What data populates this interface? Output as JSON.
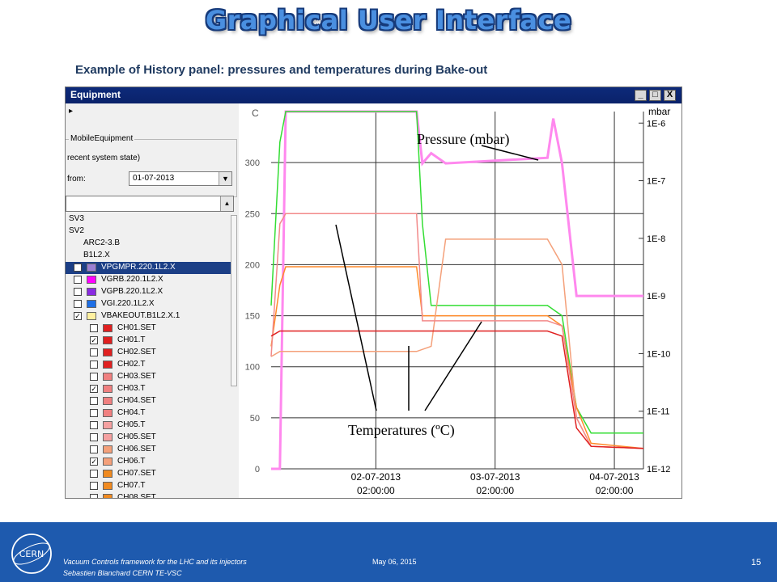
{
  "slide": {
    "title": "Graphical User Interface",
    "subtitle": "Example of History panel: pressures and temperatures during Bake-out"
  },
  "window": {
    "title": "Equipment",
    "buttons": [
      "_",
      "□",
      "X"
    ]
  },
  "panel": {
    "arrow": "▸",
    "group_label": "MobileEquipment",
    "recent_label": "recent system state)",
    "from_label": "from:",
    "from_value": "01-07-2013",
    "tree_items": [
      {
        "label": "SV3",
        "indent": 0
      },
      {
        "label": "SV2",
        "indent": 0
      },
      {
        "label": "ARC2-3.B",
        "indent": 1
      },
      {
        "label": "B1L2.X",
        "indent": 1
      },
      {
        "label": "VPGMPR.220.1L2.X",
        "checked": true,
        "color": "#9b7fd4",
        "selected": true
      },
      {
        "label": "VGRB.220.1L2.X",
        "checked": false,
        "color": "#ff00ff"
      },
      {
        "label": "VGPB.220.1L2.X",
        "checked": false,
        "color": "#8a2be2"
      },
      {
        "label": "VGI.220.1L2.X",
        "checked": false,
        "color": "#1e6fe6"
      },
      {
        "label": "VBAKEOUT.B1L2.X.1",
        "checked": true,
        "color": "#fff0a0"
      },
      {
        "label": "CH01.SET",
        "checked": false,
        "color": "#e02020",
        "sub": true
      },
      {
        "label": "CH01.T",
        "checked": true,
        "color": "#e02020",
        "sub": true
      },
      {
        "label": "CH02.SET",
        "checked": false,
        "color": "#e02020",
        "sub": true
      },
      {
        "label": "CH02.T",
        "checked": false,
        "color": "#e02020",
        "sub": true
      },
      {
        "label": "CH03.SET",
        "checked": false,
        "color": "#f08080",
        "sub": true
      },
      {
        "label": "CH03.T",
        "checked": true,
        "color": "#f08080",
        "sub": true
      },
      {
        "label": "CH04.SET",
        "checked": false,
        "color": "#f08080",
        "sub": true
      },
      {
        "label": "CH04.T",
        "checked": false,
        "color": "#f08080",
        "sub": true
      },
      {
        "label": "CH05.T",
        "checked": false,
        "color": "#f4a0a0",
        "sub": true
      },
      {
        "label": "CH05.SET",
        "checked": false,
        "color": "#f4a0a0",
        "sub": true
      },
      {
        "label": "CH06.SET",
        "checked": false,
        "color": "#f4a07a",
        "sub": true
      },
      {
        "label": "CH06.T",
        "checked": true,
        "color": "#f4a07a",
        "sub": true
      },
      {
        "label": "CH07.SET",
        "checked": false,
        "color": "#f08a20",
        "sub": true
      },
      {
        "label": "CH07.T",
        "checked": false,
        "color": "#f08a20",
        "sub": true
      },
      {
        "label": "CH08.SET",
        "checked": false,
        "color": "#f08a20",
        "sub": true
      }
    ]
  },
  "chart_data": {
    "type": "line",
    "left_axis": {
      "label": "C",
      "ticks": [
        0,
        50,
        100,
        150,
        200,
        250,
        300
      ]
    },
    "right_axis": {
      "label": "mbar",
      "scale": "log",
      "ticks": [
        "1E-6",
        "1E-7",
        "1E-8",
        "1E-9",
        "1E-10",
        "1E-11",
        "1E-12"
      ]
    },
    "x_ticks": [
      {
        "date": "02-07-2013",
        "time": "02:00:00"
      },
      {
        "date": "03-07-2013",
        "time": "02:00:00"
      },
      {
        "date": "04-07-2013",
        "time": "02:00:00"
      }
    ],
    "annotations": {
      "pressure": "Pressure (mbar)",
      "temperatures": "Temperatures (ºC)"
    },
    "series": [
      {
        "color": "#ff88ee",
        "axis": "right",
        "points": [
          [
            0.0,
            1e-12
          ],
          [
            0.03,
            1e-12
          ],
          [
            0.05,
            2e-06
          ],
          [
            0.5,
            2e-06
          ],
          [
            0.52,
            2e-07
          ],
          [
            0.55,
            3e-07
          ],
          [
            0.6,
            2e-07
          ],
          [
            0.95,
            2.5e-07
          ],
          [
            0.97,
            1.2e-06
          ],
          [
            1.0,
            2e-07
          ],
          [
            1.05,
            1e-09
          ],
          [
            1.28,
            1e-09
          ]
        ]
      },
      {
        "color": "#33dd33",
        "axis": "left",
        "points": [
          [
            0.0,
            160
          ],
          [
            0.03,
            320
          ],
          [
            0.05,
            350
          ],
          [
            0.5,
            350
          ],
          [
            0.52,
            240
          ],
          [
            0.55,
            160
          ],
          [
            0.95,
            160
          ],
          [
            1.0,
            150
          ],
          [
            1.05,
            60
          ],
          [
            1.1,
            35
          ],
          [
            1.28,
            35
          ]
        ]
      },
      {
        "color": "#ff8a2a",
        "axis": "left",
        "points": [
          [
            0.0,
            120
          ],
          [
            0.03,
            180
          ],
          [
            0.05,
            198
          ],
          [
            0.5,
            198
          ],
          [
            0.52,
            150
          ],
          [
            0.95,
            150
          ],
          [
            1.0,
            140
          ],
          [
            1.05,
            60
          ],
          [
            1.1,
            25
          ],
          [
            1.28,
            20
          ]
        ]
      },
      {
        "color": "#f4a07a",
        "axis": "left",
        "points": [
          [
            0.0,
            110
          ],
          [
            0.03,
            115
          ],
          [
            0.5,
            115
          ],
          [
            0.55,
            120
          ],
          [
            0.6,
            225
          ],
          [
            0.95,
            225
          ],
          [
            1.0,
            200
          ],
          [
            1.05,
            50
          ],
          [
            1.1,
            22
          ],
          [
            1.28,
            20
          ]
        ]
      },
      {
        "color": "#f28a8a",
        "axis": "left",
        "points": [
          [
            0.0,
            110
          ],
          [
            0.03,
            240
          ],
          [
            0.05,
            250
          ],
          [
            0.5,
            250
          ],
          [
            0.52,
            145
          ],
          [
            0.95,
            145
          ],
          [
            1.0,
            140
          ],
          [
            1.05,
            50
          ],
          [
            1.1,
            22
          ],
          [
            1.28,
            20
          ]
        ]
      },
      {
        "color": "#e02020",
        "axis": "left",
        "points": [
          [
            0.0,
            130
          ],
          [
            0.03,
            135
          ],
          [
            0.95,
            135
          ],
          [
            1.0,
            130
          ],
          [
            1.05,
            40
          ],
          [
            1.1,
            22
          ],
          [
            1.28,
            20
          ]
        ]
      }
    ]
  },
  "footer": {
    "line1": "Vacuum Controls framework for the LHC and its injectors",
    "line2": "Sebastien Blanchard CERN TE-VSC",
    "date": "May 06, 2015",
    "page": "15",
    "logo_text": "CERN"
  },
  "colors": {
    "title_fill": "#4a8fe0",
    "footer_bg": "#1e5aae",
    "selection": "#1c3f86"
  }
}
